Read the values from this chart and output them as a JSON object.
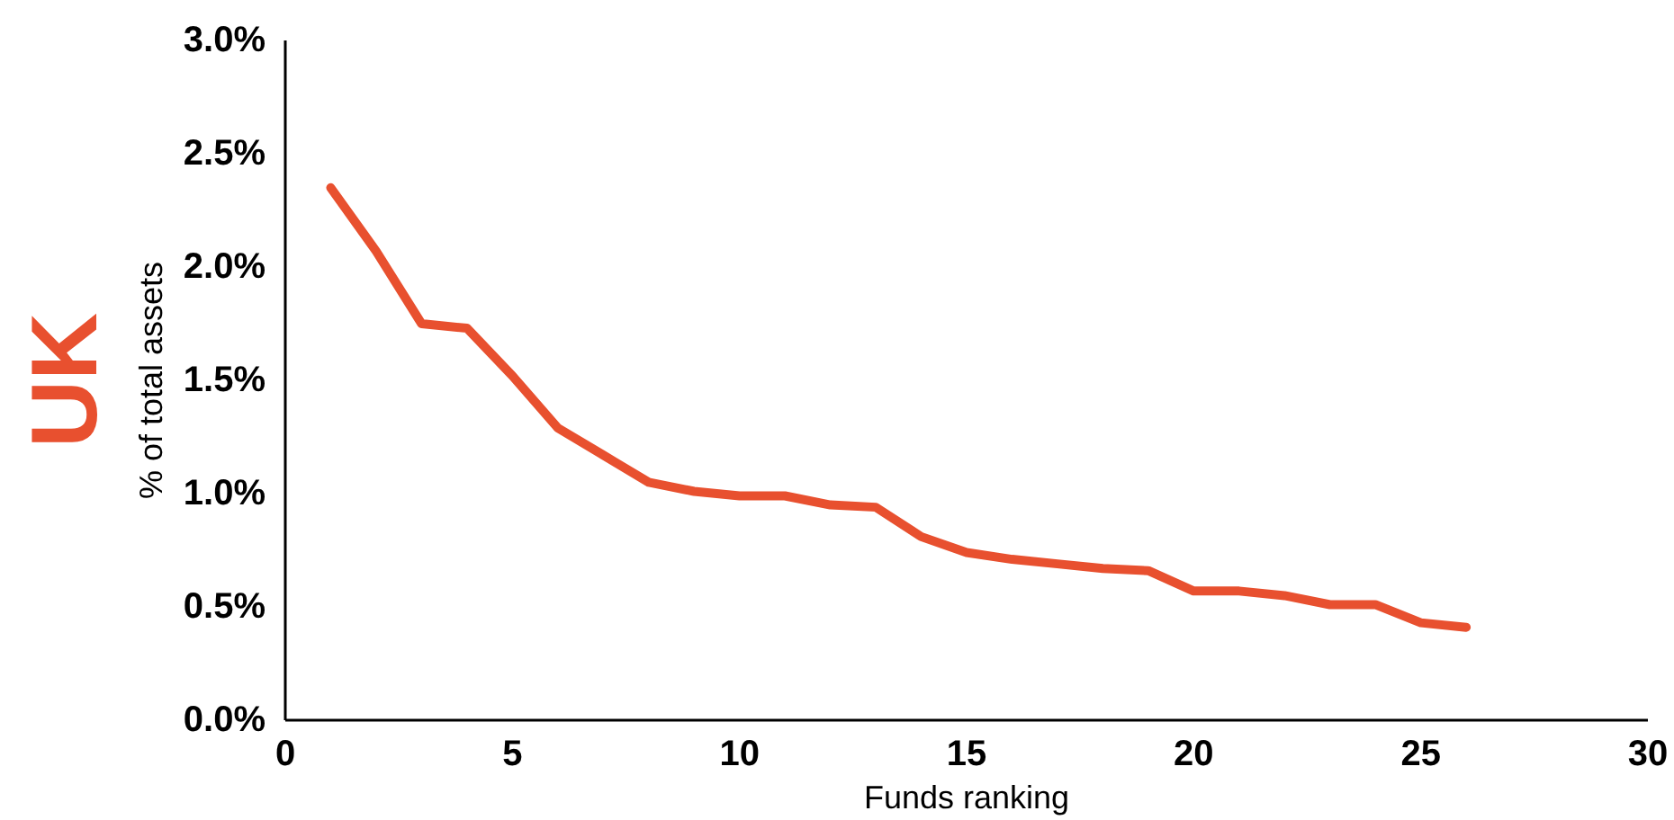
{
  "chart_data": {
    "type": "line",
    "title": "UK",
    "xlabel": "Funds ranking",
    "ylabel": "% of total assets",
    "x": [
      1,
      2,
      3,
      4,
      5,
      6,
      7,
      8,
      9,
      10,
      11,
      12,
      13,
      14,
      15,
      16,
      17,
      18,
      19,
      20,
      21,
      22,
      23,
      24,
      25,
      26
    ],
    "series": [
      {
        "color": "#e8502f",
        "values": [
          2.35,
          2.07,
          1.75,
          1.73,
          1.52,
          1.29,
          1.17,
          1.05,
          1.01,
          0.99,
          0.99,
          0.95,
          0.94,
          0.81,
          0.74,
          0.71,
          0.69,
          0.67,
          0.66,
          0.57,
          0.57,
          0.55,
          0.51,
          0.51,
          0.43,
          0.41
        ]
      }
    ],
    "xlim": [
      0,
      30
    ],
    "xticks": [
      0,
      5,
      10,
      15,
      20,
      25,
      30
    ],
    "ylim": [
      0,
      3
    ],
    "yticks": [
      {
        "value": 0,
        "label": "0.0%"
      },
      {
        "value": 0.5,
        "label": "0.5%"
      },
      {
        "value": 1,
        "label": "1.0%"
      },
      {
        "value": 1.5,
        "label": "1.5%"
      },
      {
        "value": 2,
        "label": "2.0%"
      },
      {
        "value": 2.5,
        "label": "2.5%"
      },
      {
        "value": 3,
        "label": "3.0%"
      }
    ],
    "grid": false,
    "marker": "none",
    "line_style": "solid"
  }
}
